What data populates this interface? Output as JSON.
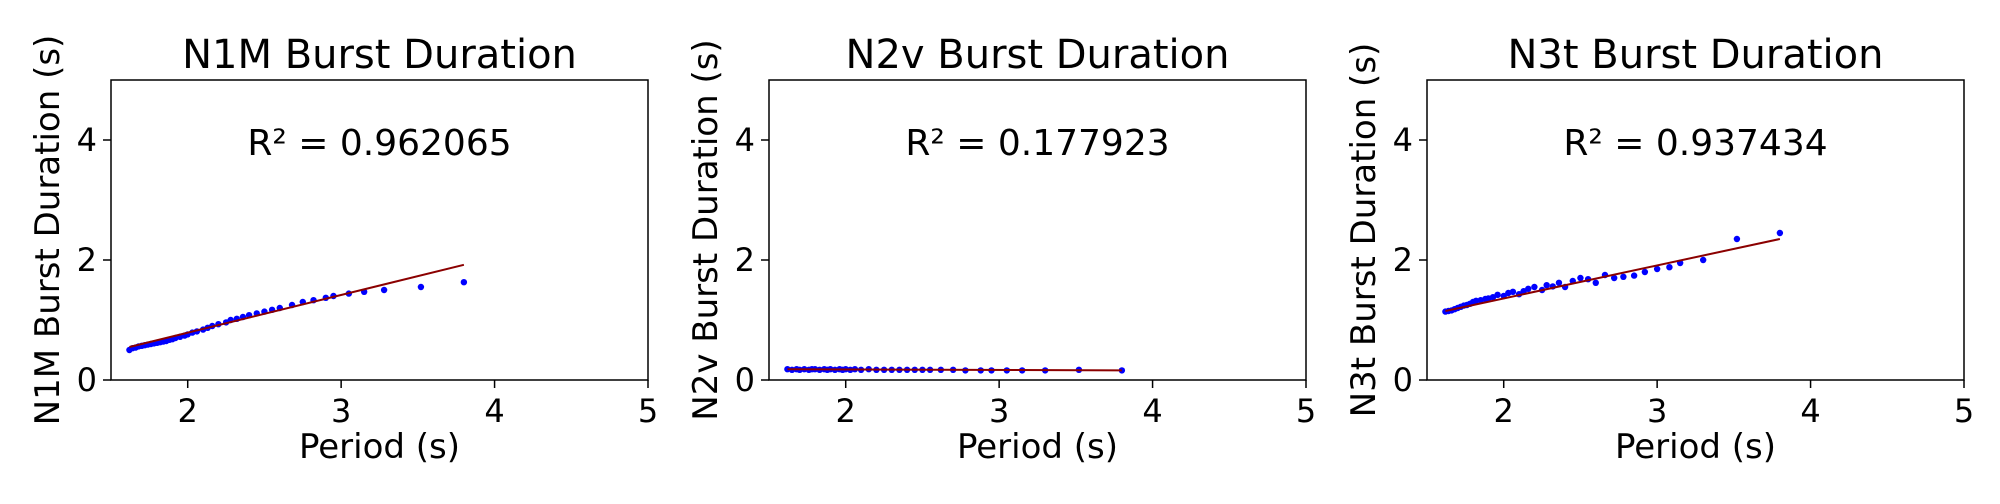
{
  "colors": {
    "points": "#0000ff",
    "fit_line": "#8b0000",
    "frame": "#000000"
  },
  "chart_data": [
    {
      "type": "scatter",
      "title": "N1M Burst Duration",
      "xlabel": "Period (s)",
      "ylabel": "N1M Burst Duration (s)",
      "xlim": [
        1.5,
        5
      ],
      "ylim": [
        0,
        5
      ],
      "xticks": [
        2,
        3,
        4,
        5
      ],
      "yticks": [
        0,
        2,
        4
      ],
      "annotation": "R² = 0.962065",
      "grid": false,
      "fit_line": {
        "x": [
          1.62,
          3.8
        ],
        "y": [
          0.55,
          1.92
        ]
      },
      "points": {
        "x": [
          1.62,
          1.64,
          1.66,
          1.68,
          1.7,
          1.72,
          1.74,
          1.76,
          1.78,
          1.8,
          1.82,
          1.84,
          1.86,
          1.88,
          1.9,
          1.92,
          1.95,
          1.98,
          2.0,
          2.03,
          2.06,
          2.1,
          2.13,
          2.16,
          2.2,
          2.25,
          2.28,
          2.32,
          2.36,
          2.4,
          2.45,
          2.5,
          2.55,
          2.6,
          2.68,
          2.75,
          2.82,
          2.9,
          2.95,
          3.05,
          3.15,
          3.28,
          3.52,
          3.8
        ],
        "y": [
          0.5,
          0.53,
          0.54,
          0.56,
          0.57,
          0.58,
          0.59,
          0.6,
          0.61,
          0.62,
          0.63,
          0.64,
          0.65,
          0.67,
          0.68,
          0.7,
          0.72,
          0.74,
          0.76,
          0.79,
          0.81,
          0.84,
          0.87,
          0.9,
          0.93,
          0.96,
          1.0,
          1.02,
          1.05,
          1.08,
          1.11,
          1.14,
          1.17,
          1.2,
          1.25,
          1.3,
          1.33,
          1.37,
          1.4,
          1.44,
          1.47,
          1.5,
          1.55,
          1.63
        ]
      }
    },
    {
      "type": "scatter",
      "title": "N2v Burst Duration",
      "xlabel": "Period (s)",
      "ylabel": "N2v Burst Duration (s)",
      "xlim": [
        1.5,
        5
      ],
      "ylim": [
        0,
        5
      ],
      "xticks": [
        2,
        3,
        4,
        5
      ],
      "yticks": [
        0,
        2,
        4
      ],
      "annotation": "R² = 0.177923",
      "grid": false,
      "fit_line": {
        "x": [
          1.62,
          3.8
        ],
        "y": [
          0.18,
          0.16
        ]
      },
      "points": {
        "x": [
          1.62,
          1.65,
          1.68,
          1.7,
          1.73,
          1.76,
          1.78,
          1.8,
          1.83,
          1.86,
          1.88,
          1.9,
          1.93,
          1.96,
          1.98,
          2.0,
          2.03,
          2.06,
          2.1,
          2.15,
          2.2,
          2.25,
          2.3,
          2.35,
          2.4,
          2.45,
          2.5,
          2.55,
          2.62,
          2.7,
          2.78,
          2.88,
          2.95,
          3.05,
          3.15,
          3.3,
          3.52,
          3.8
        ],
        "y": [
          0.18,
          0.17,
          0.18,
          0.17,
          0.18,
          0.17,
          0.18,
          0.18,
          0.17,
          0.18,
          0.17,
          0.18,
          0.17,
          0.18,
          0.17,
          0.18,
          0.17,
          0.18,
          0.17,
          0.18,
          0.17,
          0.17,
          0.17,
          0.17,
          0.17,
          0.17,
          0.17,
          0.17,
          0.17,
          0.17,
          0.16,
          0.16,
          0.16,
          0.16,
          0.16,
          0.16,
          0.17,
          0.16
        ]
      }
    },
    {
      "type": "scatter",
      "title": "N3t Burst Duration",
      "xlabel": "Period (s)",
      "ylabel": "N3t Burst Duration (s)",
      "xlim": [
        1.5,
        5
      ],
      "ylim": [
        0,
        5
      ],
      "xticks": [
        2,
        3,
        4,
        5
      ],
      "yticks": [
        0,
        2,
        4
      ],
      "annotation": "R² = 0.937434",
      "grid": false,
      "fit_line": {
        "x": [
          1.62,
          3.8
        ],
        "y": [
          1.15,
          2.35
        ]
      },
      "points": {
        "x": [
          1.62,
          1.64,
          1.66,
          1.68,
          1.7,
          1.72,
          1.74,
          1.76,
          1.78,
          1.8,
          1.82,
          1.85,
          1.88,
          1.9,
          1.93,
          1.96,
          2.0,
          2.03,
          2.06,
          2.1,
          2.13,
          2.16,
          2.2,
          2.25,
          2.28,
          2.32,
          2.36,
          2.4,
          2.45,
          2.5,
          2.55,
          2.6,
          2.66,
          2.72,
          2.78,
          2.85,
          2.92,
          3.0,
          3.08,
          3.15,
          3.3,
          3.52,
          3.8
        ],
        "y": [
          1.14,
          1.15,
          1.16,
          1.18,
          1.2,
          1.22,
          1.24,
          1.25,
          1.27,
          1.3,
          1.32,
          1.33,
          1.35,
          1.36,
          1.38,
          1.42,
          1.4,
          1.45,
          1.47,
          1.43,
          1.48,
          1.52,
          1.55,
          1.5,
          1.58,
          1.56,
          1.62,
          1.55,
          1.65,
          1.7,
          1.68,
          1.62,
          1.75,
          1.7,
          1.72,
          1.74,
          1.8,
          1.85,
          1.88,
          1.95,
          2.0,
          2.35,
          2.45
        ]
      }
    }
  ]
}
